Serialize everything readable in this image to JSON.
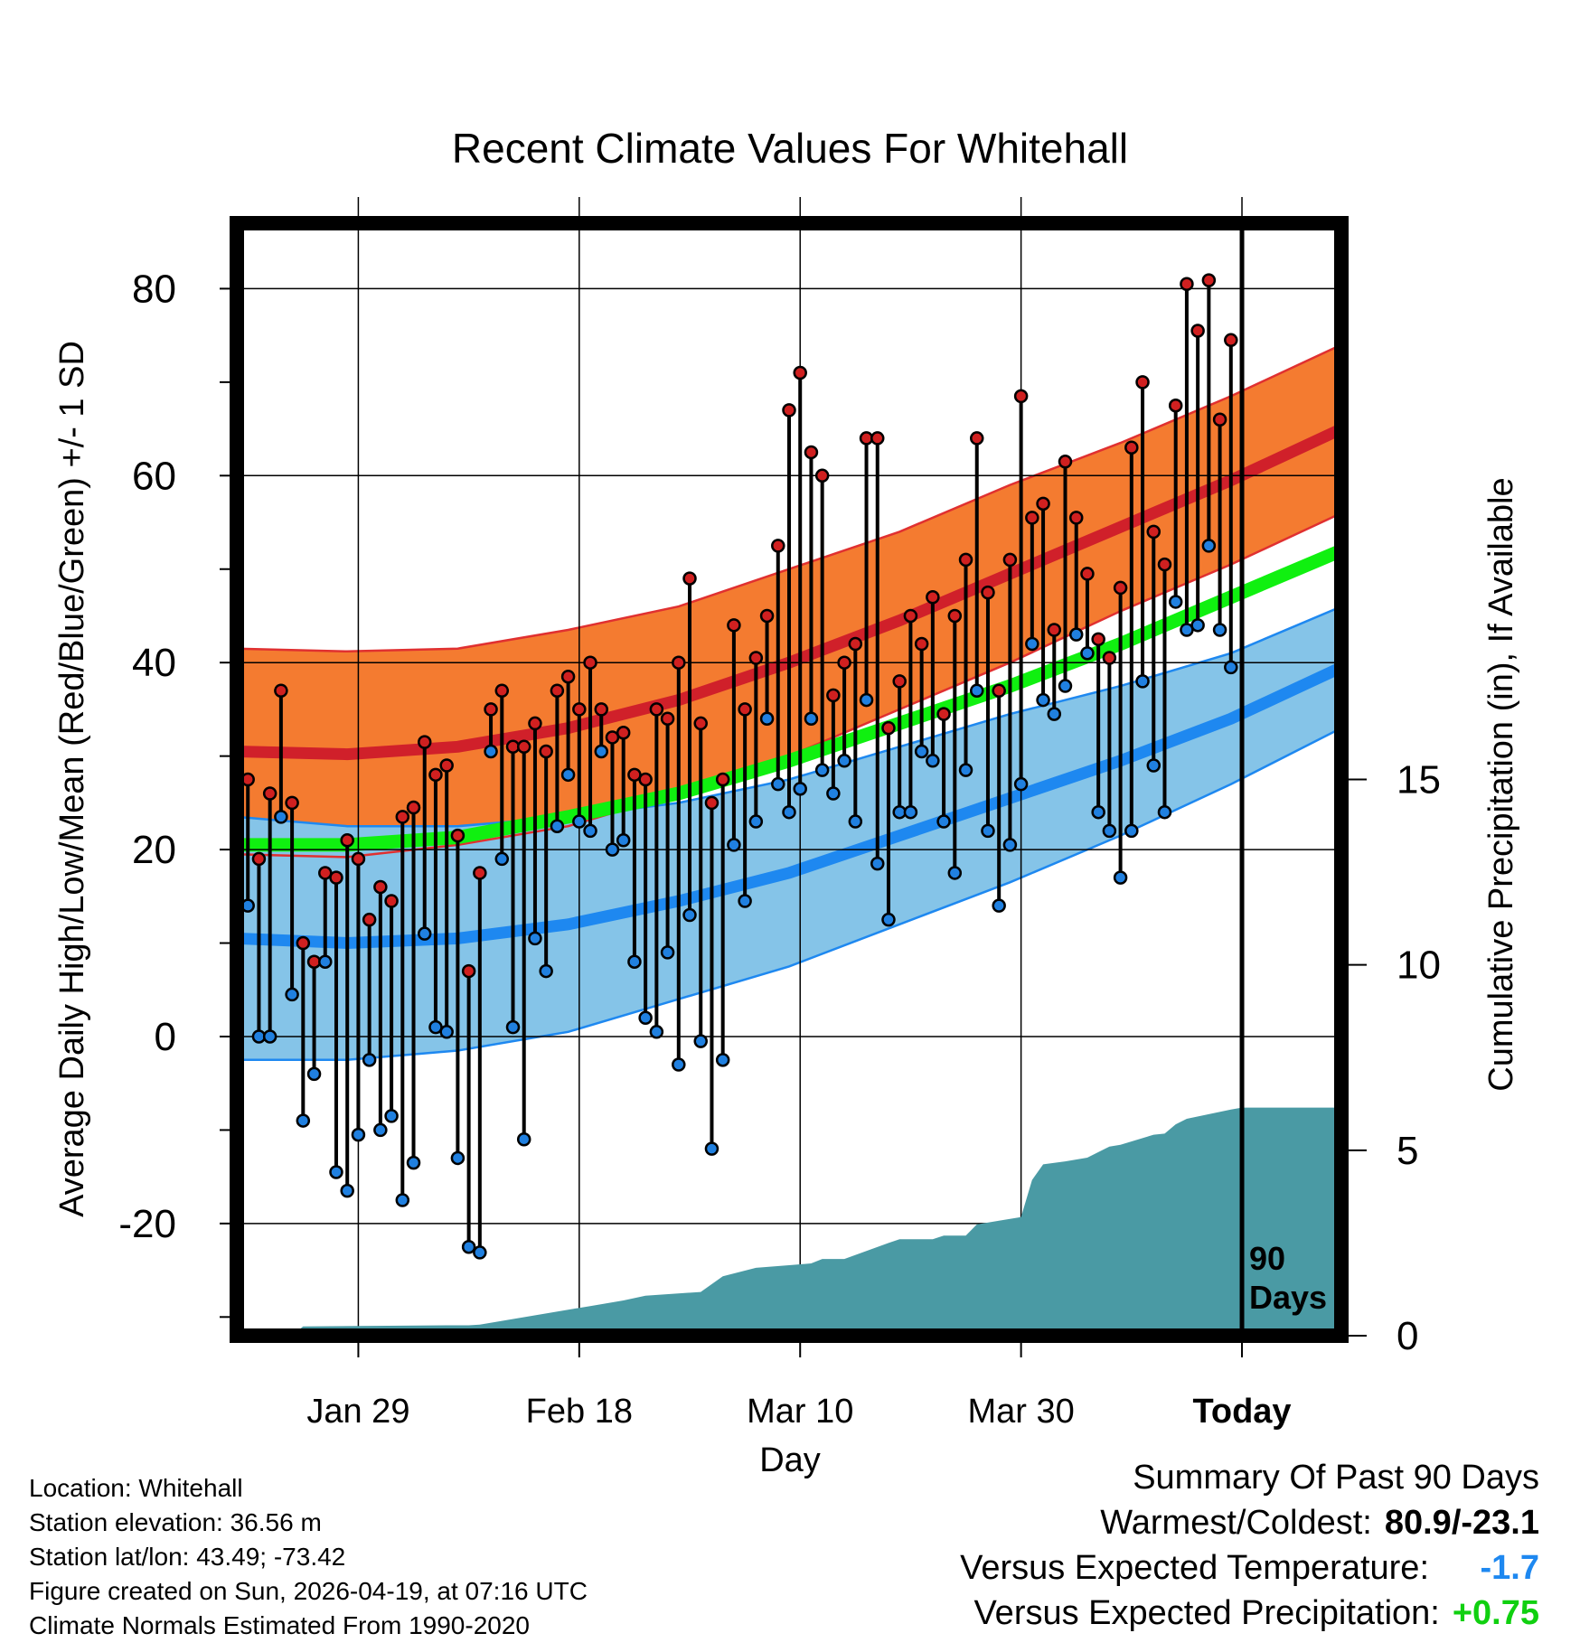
{
  "chart_data": {
    "type": "line",
    "title": "Recent Climate Values For Whitehall",
    "xlabel": "Day",
    "ylabel": "Average Daily High/Low/Mean (Red/Blue/Green) +/- 1 SD",
    "ylabel_right": "Cumulative Precipitation (in), If Available",
    "xlim": [
      1,
      101
    ],
    "ylim": [
      -32,
      87
    ],
    "precip_lim": [
      0,
      30
    ],
    "x_ticks": [
      {
        "x": 12,
        "label": "Jan 29"
      },
      {
        "x": 32,
        "label": "Feb 18"
      },
      {
        "x": 52,
        "label": "Mar 10"
      },
      {
        "x": 72,
        "label": "Mar 30"
      },
      {
        "x": 92,
        "label": "Today"
      }
    ],
    "y_ticks": [
      80,
      60,
      40,
      20,
      0,
      -20
    ],
    "y_tick_labels": [
      "80",
      "60",
      "40",
      "20",
      "0",
      "-20"
    ],
    "precip_ticks": [
      15,
      10,
      5,
      0
    ],
    "precip_tick_labels": [
      "15",
      "10",
      "5",
      "0"
    ],
    "today_x": 92,
    "today_label": [
      "90",
      "Days"
    ],
    "normals_x": [
      1,
      11,
      21,
      31,
      41,
      51,
      61,
      71,
      81,
      91,
      101
    ],
    "normal_high": [
      30.5,
      30.2,
      31.0,
      33.0,
      36.0,
      40.0,
      44.5,
      49.5,
      54.5,
      59.5,
      65.0
    ],
    "normal_high_sd": [
      11.0,
      11.0,
      10.5,
      10.5,
      10.0,
      10.0,
      9.5,
      9.5,
      9.0,
      9.0,
      9.0
    ],
    "normal_low": [
      10.5,
      10.0,
      10.5,
      12.0,
      14.5,
      17.5,
      21.5,
      25.5,
      29.5,
      34.0,
      39.5
    ],
    "normal_low_sd": [
      13.0,
      12.5,
      12.0,
      11.5,
      10.5,
      10.0,
      9.5,
      9.0,
      8.0,
      7.0,
      6.5
    ],
    "normal_mean": [
      20.5,
      20.5,
      21.3,
      23.5,
      26.0,
      29.5,
      33.5,
      37.5,
      42.0,
      47.0,
      52.0
    ],
    "daily_high": [
      27.5,
      19.0,
      26.0,
      37.0,
      25.0,
      10.0,
      8.0,
      17.5,
      17.0,
      21.0,
      19.0,
      12.5,
      16.0,
      14.5,
      23.5,
      24.5,
      31.5,
      28.0,
      29.0,
      21.5,
      7.0,
      17.5,
      35.0,
      37.0,
      31.0,
      31.0,
      33.5,
      30.5,
      37.0,
      38.5,
      35.0,
      40.0,
      35.0,
      32.0,
      32.5,
      28.0,
      27.5,
      35.0,
      34.0,
      40.0,
      49.0,
      33.5,
      25.0,
      27.5,
      44.0,
      35.0,
      40.5,
      45.0,
      52.5,
      67.0,
      71.0,
      62.5,
      60.0,
      36.5,
      40.0,
      42.0,
      64.0,
      64.0,
      33.0,
      38.0,
      45.0,
      42.0,
      47.0,
      34.5,
      45.0,
      51.0,
      64.0,
      47.5,
      37.0,
      51.0,
      68.5,
      55.5,
      57.0,
      43.5,
      61.5,
      55.5,
      49.5,
      42.5,
      40.5,
      48.0,
      63.0,
      70.0,
      54.0,
      50.5,
      67.5,
      80.5,
      75.5,
      80.9,
      66.0,
      74.5
    ],
    "daily_low": [
      14.0,
      0.0,
      0.0,
      23.5,
      4.5,
      -9.0,
      -4.0,
      8.0,
      -14.5,
      -16.5,
      -10.5,
      -2.5,
      -10.0,
      -8.5,
      -17.5,
      -13.5,
      11.0,
      1.0,
      0.5,
      -13.0,
      -22.5,
      -23.1,
      30.5,
      19.0,
      1.0,
      -11.0,
      10.5,
      7.0,
      22.5,
      28.0,
      23.0,
      22.0,
      30.5,
      20.0,
      21.0,
      8.0,
      2.0,
      0.5,
      9.0,
      -3.0,
      13.0,
      -0.5,
      -12.0,
      -2.5,
      20.5,
      14.5,
      23.0,
      34.0,
      27.0,
      24.0,
      26.5,
      34.0,
      28.5,
      26.0,
      29.5,
      23.0,
      36.0,
      18.5,
      12.5,
      24.0,
      24.0,
      30.5,
      29.5,
      23.0,
      17.5,
      28.5,
      37.0,
      22.0,
      14.0,
      20.5,
      27.0,
      42.0,
      36.0,
      34.5,
      37.5,
      43.0,
      41.0,
      24.0,
      22.0,
      17.0,
      22.0,
      38.0,
      29.0,
      24.0,
      46.5,
      43.5,
      44.0,
      52.5,
      43.5,
      39.5
    ],
    "precip_x": [
      1,
      6,
      7,
      20,
      22,
      23,
      32,
      33,
      36,
      38,
      43,
      45,
      48,
      51,
      53,
      54,
      56,
      60,
      61,
      64,
      65,
      67,
      68,
      70,
      72,
      73,
      74,
      76,
      78,
      80,
      81,
      84,
      85,
      86,
      87,
      91,
      92,
      101
    ],
    "precip_cum": [
      0,
      0,
      0.25,
      0.28,
      0.28,
      0.3,
      0.75,
      0.8,
      0.95,
      1.08,
      1.18,
      1.6,
      1.83,
      1.9,
      1.95,
      2.07,
      2.07,
      2.5,
      2.6,
      2.6,
      2.7,
      2.7,
      3.0,
      3.1,
      3.2,
      4.2,
      4.62,
      4.7,
      4.8,
      5.1,
      5.15,
      5.42,
      5.45,
      5.7,
      5.85,
      6.1,
      6.15,
      6.15
    ]
  },
  "info": {
    "location": "Location: Whitehall",
    "elevation": "Station elevation: 36.56 m",
    "latlon": "Station lat/lon: 43.49; -73.42",
    "created": "Figure created on Sun, 2026-04-19, at 07:16 UTC",
    "normals": "Climate Normals Estimated From 1990-2020"
  },
  "summary": {
    "title": "Summary Of Past 90 Days",
    "warmest_coldest_label": "Warmest/Coldest:",
    "warmest_coldest_value": "80.9/-23.1",
    "temp_label": "Versus Expected Temperature:",
    "temp_value": "-1.7",
    "precip_label": "Versus Expected Precipitation:",
    "precip_value": "+0.75"
  },
  "colors": {
    "high_band": "#f47b30",
    "high_line": "#d0202a",
    "high_edge": "#e03030",
    "low_band": "#85c4e8",
    "low_line": "#1e88f0",
    "mean_line": "#10f010",
    "precip_fill": "#4a9aa4",
    "high_dot": "#d02020",
    "low_dot": "#2080e0",
    "temp_value": "#1e88f0",
    "precip_value": "#10d010"
  }
}
